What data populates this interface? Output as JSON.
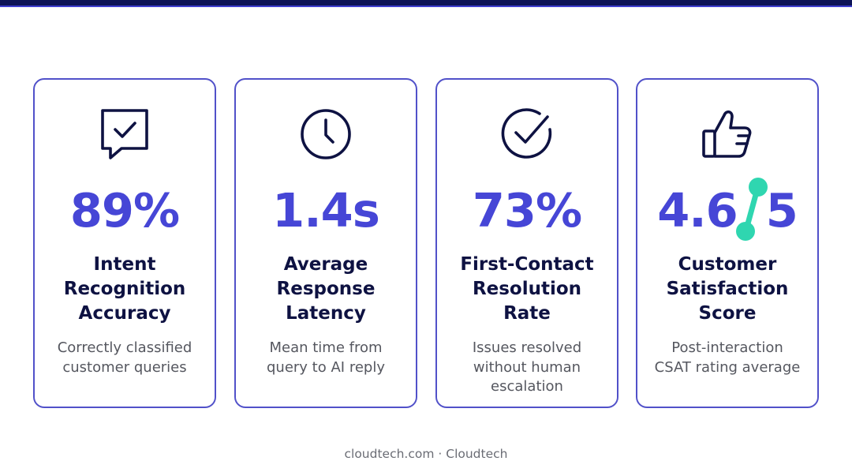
{
  "colors": {
    "accent": "#4646d6",
    "card_border": "#5151c9",
    "heading": "#0e1242",
    "body_text": "#55575f",
    "highlight": "#2fd6b0",
    "top_bar": "#0d1457"
  },
  "cards": [
    {
      "icon": "chat-check-icon",
      "value": "89%",
      "label_lines": [
        "Intent",
        "Recognition",
        "Accuracy"
      ],
      "description_lines": [
        "Correctly classified",
        "customer queries"
      ]
    },
    {
      "icon": "clock-icon",
      "value": "1.4s",
      "label_lines": [
        "Average",
        "Response",
        "Latency"
      ],
      "description_lines": [
        "Mean time from",
        "query to AI reply"
      ]
    },
    {
      "icon": "check-circle-icon",
      "value": "73%",
      "label_lines": [
        "First-Contact",
        "Resolution",
        "Rate"
      ],
      "description_lines": [
        "Issues resolved",
        "without human",
        "escalation"
      ]
    },
    {
      "icon": "thumbs-up-icon",
      "value_main": "4.6",
      "value_sep": "/",
      "value_den": "5",
      "label_lines": [
        "Customer",
        "Satisfaction",
        "Score"
      ],
      "description_lines": [
        "Post-interaction",
        "CSAT rating average"
      ]
    }
  ],
  "footer": {
    "text": "cloudtech.com · Cloudtech"
  }
}
